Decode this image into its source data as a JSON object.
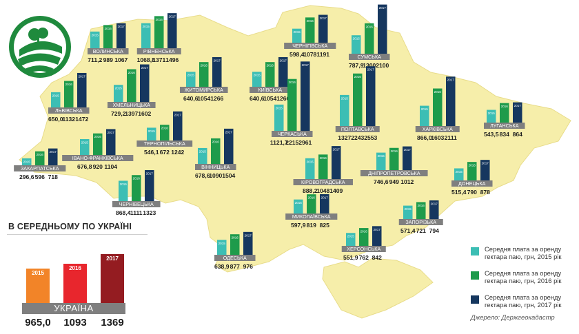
{
  "chart_data": {
    "type": "bar",
    "series": [
      {
        "name": "Середня плата за оренду гектара паю, грн, 2015 рік",
        "color": "#3cbeb4",
        "year_tag": "2015"
      },
      {
        "name": "Середня плата за оренду гектара паю, грн, 2016 рік",
        "color": "#1e9b4b",
        "year_tag": "2016"
      },
      {
        "name": "Середня плата за оренду гектара паю, грн, 2017 рік",
        "color": "#16375f",
        "year_tag": "2017"
      }
    ],
    "regions": [
      {
        "name": "ВОЛИНСЬКА",
        "values": [
          711.2,
          989,
          1067
        ],
        "labels": [
          "711,2",
          "989",
          "1067"
        ]
      },
      {
        "name": "РІВНЕНСЬКА",
        "values": [
          1068.8,
          1371,
          1496
        ],
        "labels": [
          "1068,8",
          "1371",
          "1496"
        ]
      },
      {
        "name": "ЧЕРНІГІВСЬКА",
        "values": [
          598.4,
          1078,
          1191
        ],
        "labels": [
          "598,4",
          "1078",
          "1191"
        ]
      },
      {
        "name": "СУМСЬКА",
        "values": [
          787.9,
          1300,
          2100
        ],
        "labels": [
          "787,9",
          "1300",
          "2100"
        ]
      },
      {
        "name": "ЛЬВІВСЬКА",
        "values": [
          650.0,
          1132,
          1472
        ],
        "labels": [
          "650,0",
          "1132",
          "1472"
        ]
      },
      {
        "name": "ЖИТОМИРСЬКА",
        "values": [
          640.6,
          1054,
          1266
        ],
        "labels": [
          "640,6",
          "1054",
          "1266"
        ]
      },
      {
        "name": "КИЇВСЬКА",
        "values": [
          640.6,
          1054,
          1266
        ],
        "labels": [
          "640,6",
          "1054",
          "1266"
        ]
      },
      {
        "name": "ХМЕЛЬНИЦЬКА",
        "values": [
          729.2,
          1397,
          1602
        ],
        "labels": [
          "729,2",
          "1397",
          "1602"
        ]
      },
      {
        "name": "ПОЛТАВСЬКА",
        "values": [
          1327,
          2243,
          2553
        ],
        "labels": [
          "1327",
          "2243",
          "2553"
        ]
      },
      {
        "name": "ХАРКІВСЬКА",
        "values": [
          866.0,
          1603,
          2111
        ],
        "labels": [
          "866,0",
          "1603",
          "2111"
        ]
      },
      {
        "name": "ТЕРНОПІЛЬСЬКА",
        "values": [
          546.1,
          672,
          1242
        ],
        "labels": [
          "546,1",
          "672",
          "1242"
        ]
      },
      {
        "name": "ЧЕРКАСЬКА",
        "values": [
          1121.7,
          2215,
          2961
        ],
        "labels": [
          "1121,7",
          "2215",
          "2961"
        ]
      },
      {
        "name": "ЛУГАНСЬКА",
        "values": [
          543.5,
          834,
          864
        ],
        "labels": [
          "543,5",
          "834",
          "864"
        ]
      },
      {
        "name": "ІВАНО-ФРАНКІВСЬКА",
        "values": [
          676.8,
          920,
          1104
        ],
        "labels": [
          "676,8",
          "920",
          "1104"
        ]
      },
      {
        "name": "ВІННИЦЬКА",
        "values": [
          678.6,
          1090,
          1504
        ],
        "labels": [
          "678,6",
          "1090",
          "1504"
        ]
      },
      {
        "name": "ЗАКАРПАТСЬКА",
        "values": [
          296.6,
          596,
          718
        ],
        "labels": [
          "296,6",
          "596",
          "718"
        ]
      },
      {
        "name": "КІРОВОГРАДСЬКА",
        "values": [
          888.2,
          1048,
          1409
        ],
        "labels": [
          "888,2",
          "1048",
          "1409"
        ]
      },
      {
        "name": "ДНІПРОПЕТРОВСЬКА",
        "values": [
          746.6,
          949,
          1012
        ],
        "labels": [
          "746,6",
          "949",
          "1012"
        ]
      },
      {
        "name": "ДОНЕЦЬКА",
        "values": [
          515.4,
          790,
          878
        ],
        "labels": [
          "515,4",
          "790",
          "878"
        ]
      },
      {
        "name": "ЧЕРНІВЕЦЬКА",
        "values": [
          868.4,
          1111,
          1323
        ],
        "labels": [
          "868,4",
          "1111",
          "1323"
        ]
      },
      {
        "name": "МИКОЛАЇВСЬКА",
        "values": [
          597.9,
          819,
          825
        ],
        "labels": [
          "597,9",
          "819",
          "825"
        ]
      },
      {
        "name": "ЗАПОРІЗЬКА",
        "values": [
          571.4,
          721,
          794
        ],
        "labels": [
          "571,4",
          "721",
          "794"
        ]
      },
      {
        "name": "ОДЕСЬКА",
        "values": [
          638.9,
          877,
          976
        ],
        "labels": [
          "638,9",
          "877",
          "976"
        ]
      },
      {
        "name": "ХЕРСОНСЬКА",
        "values": [
          551.9,
          762,
          842
        ],
        "labels": [
          "551,9",
          "762",
          "842"
        ]
      }
    ],
    "national_average": {
      "title": "В СЕРЕДНЬОМУ ПО УКРАЇНІ",
      "label": "УКРАЇНА",
      "categories": [
        "2015",
        "2016",
        "2017"
      ],
      "values": [
        965.0,
        1093,
        1369
      ],
      "value_labels": [
        "965,0",
        "1093",
        "1369"
      ],
      "colors": [
        "#f28428",
        "#e8262d",
        "#941c21"
      ]
    },
    "source": "Джерело: Держгеокадастр"
  },
  "colors": {
    "map_fill": "#f6eeaa",
    "map_border": "#ffffff",
    "logo_green": "#1f8a3d"
  }
}
